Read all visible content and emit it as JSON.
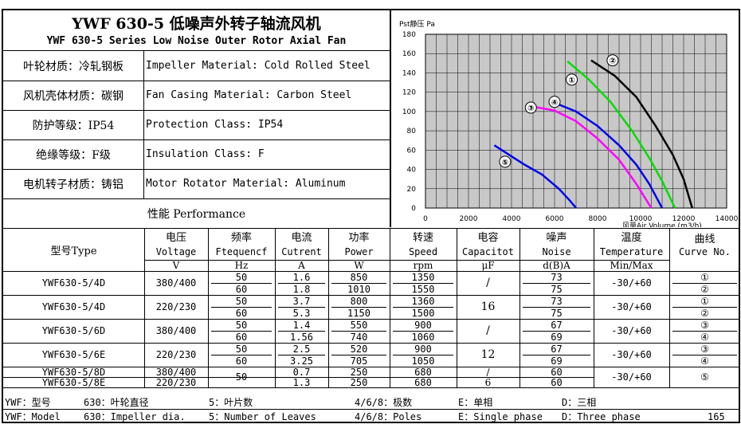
{
  "title": {
    "cn": "YWF 630-5 低噪声外转子轴流风机",
    "en": "YWF 630-5 Series Low Noise Outer Rotor Axial Fan"
  },
  "specs": [
    {
      "cn": "叶轮材质：冷轧钢板",
      "en": "Impeller Material: Cold Rolled Steel"
    },
    {
      "cn": "风机壳体材质：碳钢",
      "en": "Fan Casing Material: Carbon Steel"
    },
    {
      "cn": "防护等级：IP54",
      "en": "Protection Class: IP54"
    },
    {
      "cn": "绝缘等级：F级",
      "en": "Insulation Class: F"
    },
    {
      "cn": "电机转子材质：铸铝",
      "en": "Motor Rotator Material: Aluminum"
    }
  ],
  "performance_label": "性能  Performance",
  "table": {
    "headers": [
      {
        "cn": "型号Type",
        "en": "",
        "unit": ""
      },
      {
        "cn": "电压",
        "en": "Voltage",
        "unit": "V"
      },
      {
        "cn": "频率",
        "en": "Ftequencf",
        "unit": "Hz"
      },
      {
        "cn": "电流",
        "en": "Cutrent",
        "unit": "A"
      },
      {
        "cn": "功率",
        "en": "Power",
        "unit": "W"
      },
      {
        "cn": "转速",
        "en": "Speed",
        "unit": "rpm"
      },
      {
        "cn": "电容",
        "en": "Capacitot",
        "unit": "μF"
      },
      {
        "cn": "噪声",
        "en": "Noise",
        "unit": "d(B)A"
      },
      {
        "cn": "温度",
        "en": "Temperature",
        "unit": "Min/Max"
      },
      {
        "cn": "曲线",
        "en": "Curve No.",
        "unit": ""
      }
    ],
    "rows": [
      {
        "type": "YWF630-5/4D",
        "voltage": "380/400",
        "freq": [
          "50",
          "60"
        ],
        "current": [
          "1.6",
          "1.8"
        ],
        "power": [
          "850",
          "1010"
        ],
        "speed": [
          "1350",
          "1550"
        ],
        "cap": "/",
        "noise": [
          "73",
          "75"
        ],
        "temp": "-30/+60",
        "curve": [
          "①",
          "②"
        ]
      },
      {
        "type": "YWF630-5/4D",
        "voltage": "220/230",
        "freq": [
          "50",
          "60"
        ],
        "current": [
          "3.7",
          "5.3"
        ],
        "power": [
          "800",
          "1150"
        ],
        "speed": [
          "1360",
          "1500"
        ],
        "cap": "16",
        "noise": [
          "73",
          "75"
        ],
        "temp": "-30/+60",
        "curve": [
          "①",
          "②"
        ]
      },
      {
        "type": "YWF630-5/6D",
        "voltage": "380/400",
        "freq": [
          "50",
          "60"
        ],
        "current": [
          "1.4",
          "1.56"
        ],
        "power": [
          "550",
          "740"
        ],
        "speed": [
          "900",
          "1060"
        ],
        "cap": "/",
        "noise": [
          "67",
          "69"
        ],
        "temp": "-30/+60",
        "curve": [
          "③",
          "④"
        ]
      },
      {
        "type": "YWF630-5/6E",
        "voltage": "220/230",
        "freq": [
          "50",
          "60"
        ],
        "current": [
          "2.5",
          "3.25"
        ],
        "power": [
          "520",
          "705"
        ],
        "speed": [
          "900",
          "1050"
        ],
        "cap": "12",
        "noise": [
          "67",
          "69"
        ],
        "temp": "-30/+60",
        "curve": [
          "③",
          "④"
        ]
      }
    ],
    "last_rows": [
      {
        "type": "YWF630-5/8D",
        "voltage": "380/400",
        "current": "0.7",
        "power": "250",
        "speed": "680",
        "cap": "/",
        "noise": "60"
      },
      {
        "type": "YWF630-5/8E",
        "voltage": "220/230",
        "current": "1.3",
        "power": "250",
        "speed": "680",
        "cap": "6",
        "noise": "60"
      }
    ],
    "last_freq": "50",
    "last_temp": "-30/+60",
    "last_curve": "⑤"
  },
  "footer": {
    "cn": [
      "YWF：型号",
      "630：叶轮直径",
      "5：叶片数",
      "4/6/8：极数",
      "E：单相",
      "D：三相"
    ],
    "en": [
      "YWF：Model",
      "630：Impeller dia.",
      "5：Number of Leaves",
      "4/6/8：Poles",
      "E：Single phase",
      "D：Three phase"
    ],
    "page": "165"
  },
  "chart_data": {
    "type": "line",
    "ylabel": "Pst静压 Pa",
    "xlabel": "风量Air Volume (m3/h)",
    "xlim": [
      0,
      14000
    ],
    "ylim": [
      0,
      180
    ],
    "xticks": [
      "0",
      "2000",
      "4000",
      "6000",
      "8000",
      "10000",
      "12000",
      "14000"
    ],
    "yticks": [
      "0",
      "20",
      "40",
      "60",
      "80",
      "100",
      "120",
      "140",
      "160",
      "180"
    ],
    "grid": true,
    "series": [
      {
        "name": "①",
        "color": "#00dd00",
        "points": [
          [
            6600,
            152
          ],
          [
            7600,
            133
          ],
          [
            8600,
            110
          ],
          [
            9600,
            80
          ],
          [
            10400,
            52
          ],
          [
            11000,
            28
          ],
          [
            11600,
            0
          ]
        ]
      },
      {
        "name": "②",
        "color": "#000000",
        "points": [
          [
            7700,
            153
          ],
          [
            8800,
            137
          ],
          [
            9800,
            115
          ],
          [
            10700,
            85
          ],
          [
            11500,
            55
          ],
          [
            12000,
            30
          ],
          [
            12400,
            0
          ]
        ]
      },
      {
        "name": "③",
        "color": "#ff00ff",
        "points": [
          [
            5000,
            105
          ],
          [
            6000,
            101
          ],
          [
            7000,
            90
          ],
          [
            8000,
            72
          ],
          [
            9000,
            50
          ],
          [
            9800,
            25
          ],
          [
            10500,
            0
          ]
        ]
      },
      {
        "name": "④",
        "color": "#0000ee",
        "points": [
          [
            6000,
            109
          ],
          [
            7000,
            100
          ],
          [
            8000,
            85
          ],
          [
            9000,
            65
          ],
          [
            9800,
            45
          ],
          [
            10400,
            25
          ],
          [
            11000,
            0
          ]
        ]
      },
      {
        "name": "⑤",
        "color": "#0000ee",
        "points": [
          [
            3200,
            65
          ],
          [
            3900,
            55
          ],
          [
            4600,
            45
          ],
          [
            5400,
            35
          ],
          [
            6200,
            20
          ],
          [
            6700,
            8
          ],
          [
            7000,
            0
          ]
        ]
      }
    ],
    "label_positions": [
      [
        6800,
        133
      ],
      [
        8700,
        153
      ],
      [
        4900,
        104
      ],
      [
        6000,
        110
      ],
      [
        3700,
        48
      ]
    ]
  }
}
